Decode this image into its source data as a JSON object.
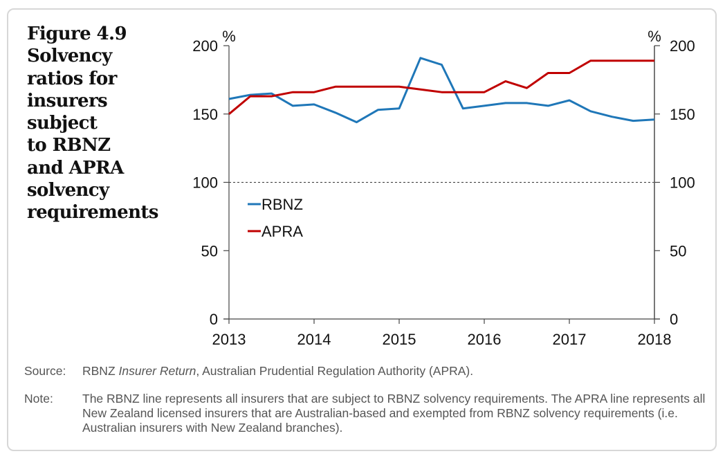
{
  "figure": {
    "title_lines": [
      "Figure 4.9",
      "Solvency",
      "ratios for",
      "insurers",
      "subject",
      "to RBNZ",
      "and APRA",
      "solvency",
      "requirements"
    ]
  },
  "chart_data": {
    "type": "line",
    "title": "Figure 4.9 Solvency ratios for insurers subject to RBNZ and APRA solvency requirements",
    "xlabel": "",
    "ylabel_left": "%",
    "ylabel_right": "%",
    "ylim": [
      0,
      200
    ],
    "xlim": [
      2013,
      2018
    ],
    "yticks": [
      "0",
      "50",
      "100",
      "150",
      "200"
    ],
    "xticks": [
      "2013",
      "2014",
      "2015",
      "2016",
      "2017",
      "2018"
    ],
    "reference_line": {
      "y": 100,
      "style": "dashed"
    },
    "legend_position": "middle-left",
    "x": [
      2013.0,
      2013.25,
      2013.5,
      2013.75,
      2014.0,
      2014.25,
      2014.5,
      2014.75,
      2015.0,
      2015.25,
      2015.5,
      2015.75,
      2016.0,
      2016.25,
      2016.5,
      2016.75,
      2017.0,
      2017.25,
      2017.5,
      2017.75,
      2018.0
    ],
    "series": [
      {
        "name": "RBNZ",
        "color": "#1f77b8",
        "values": [
          161,
          164,
          165,
          156,
          157,
          151,
          144,
          153,
          154,
          191,
          186,
          154,
          156,
          158,
          158,
          156,
          160,
          152,
          148,
          145,
          146
        ]
      },
      {
        "name": "APRA",
        "color": "#c00000",
        "values": [
          150,
          163,
          163,
          166,
          166,
          170,
          170,
          170,
          170,
          168,
          166,
          166,
          166,
          174,
          169,
          180,
          180,
          189,
          189,
          189,
          189
        ]
      }
    ]
  },
  "notes": {
    "source_label": "Source:",
    "source_prefix": "RBNZ ",
    "source_italic": "Insurer Return",
    "source_suffix": ", Australian Prudential Regulation Authority (APRA).",
    "note_label": "Note:",
    "note_text": "The RBNZ line represents all insurers that are subject to RBNZ solvency requirements. The APRA line represents all New Zealand licensed insurers that are Australian-based and exempted from RBNZ solvency requirements (i.e. Australian insurers with New Zealand branches)."
  }
}
